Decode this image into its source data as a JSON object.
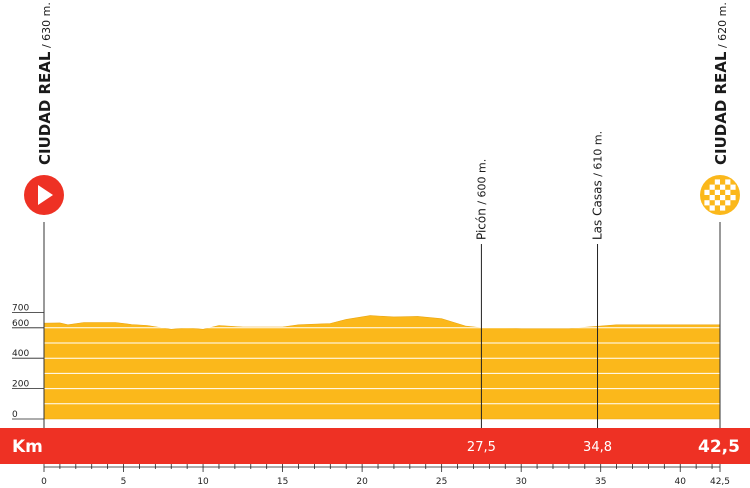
{
  "chart_data": {
    "type": "area",
    "xlabel": "Km",
    "x_ticks": [
      0,
      5,
      10,
      15,
      20,
      25,
      30,
      35,
      40,
      42.5
    ],
    "x_tick_labels": [
      "0",
      "5",
      "10",
      "15",
      "20",
      "25",
      "30",
      "35",
      "40",
      "42,5"
    ],
    "y_ticks": [
      0,
      200,
      400,
      600,
      700
    ],
    "ylim": [
      0,
      700
    ],
    "xlim": [
      0,
      42.5
    ],
    "fill_color": "#fbb81b",
    "band_color": "#ee3124",
    "profile": [
      {
        "km": 0,
        "alt": 630
      },
      {
        "km": 1,
        "alt": 632
      },
      {
        "km": 1.5,
        "alt": 620
      },
      {
        "km": 2.5,
        "alt": 635
      },
      {
        "km": 4.5,
        "alt": 635
      },
      {
        "km": 5.5,
        "alt": 622
      },
      {
        "km": 6.5,
        "alt": 615
      },
      {
        "km": 8,
        "alt": 590
      },
      {
        "km": 9,
        "alt": 600
      },
      {
        "km": 10,
        "alt": 590
      },
      {
        "km": 11,
        "alt": 615
      },
      {
        "km": 12.5,
        "alt": 605
      },
      {
        "km": 15,
        "alt": 605
      },
      {
        "km": 16,
        "alt": 620
      },
      {
        "km": 18,
        "alt": 628
      },
      {
        "km": 19,
        "alt": 655
      },
      {
        "km": 20.5,
        "alt": 680
      },
      {
        "km": 22,
        "alt": 672
      },
      {
        "km": 23.5,
        "alt": 675
      },
      {
        "km": 25,
        "alt": 660
      },
      {
        "km": 26.5,
        "alt": 612
      },
      {
        "km": 27.5,
        "alt": 600
      },
      {
        "km": 29,
        "alt": 600
      },
      {
        "km": 30,
        "alt": 595
      },
      {
        "km": 33,
        "alt": 595
      },
      {
        "km": 34.8,
        "alt": 610
      },
      {
        "km": 36,
        "alt": 620
      },
      {
        "km": 40,
        "alt": 620
      },
      {
        "km": 42.5,
        "alt": 620
      }
    ],
    "points": [
      {
        "name": "CIUDAD REAL",
        "alt_label": " / 630 m.",
        "km": 0,
        "type": "start",
        "km_label": ""
      },
      {
        "name": "Picón",
        "alt_label": " / 600 m.",
        "km": 27.5,
        "type": "intermediate",
        "km_label": "27,5"
      },
      {
        "name": "Las Casas",
        "alt_label": " / 610 m.",
        "km": 34.8,
        "type": "intermediate",
        "km_label": "34,8"
      },
      {
        "name": "CIUDAD REAL",
        "alt_label": " / 620 m.",
        "km": 42.5,
        "type": "finish",
        "km_label": "42,5"
      }
    ]
  }
}
